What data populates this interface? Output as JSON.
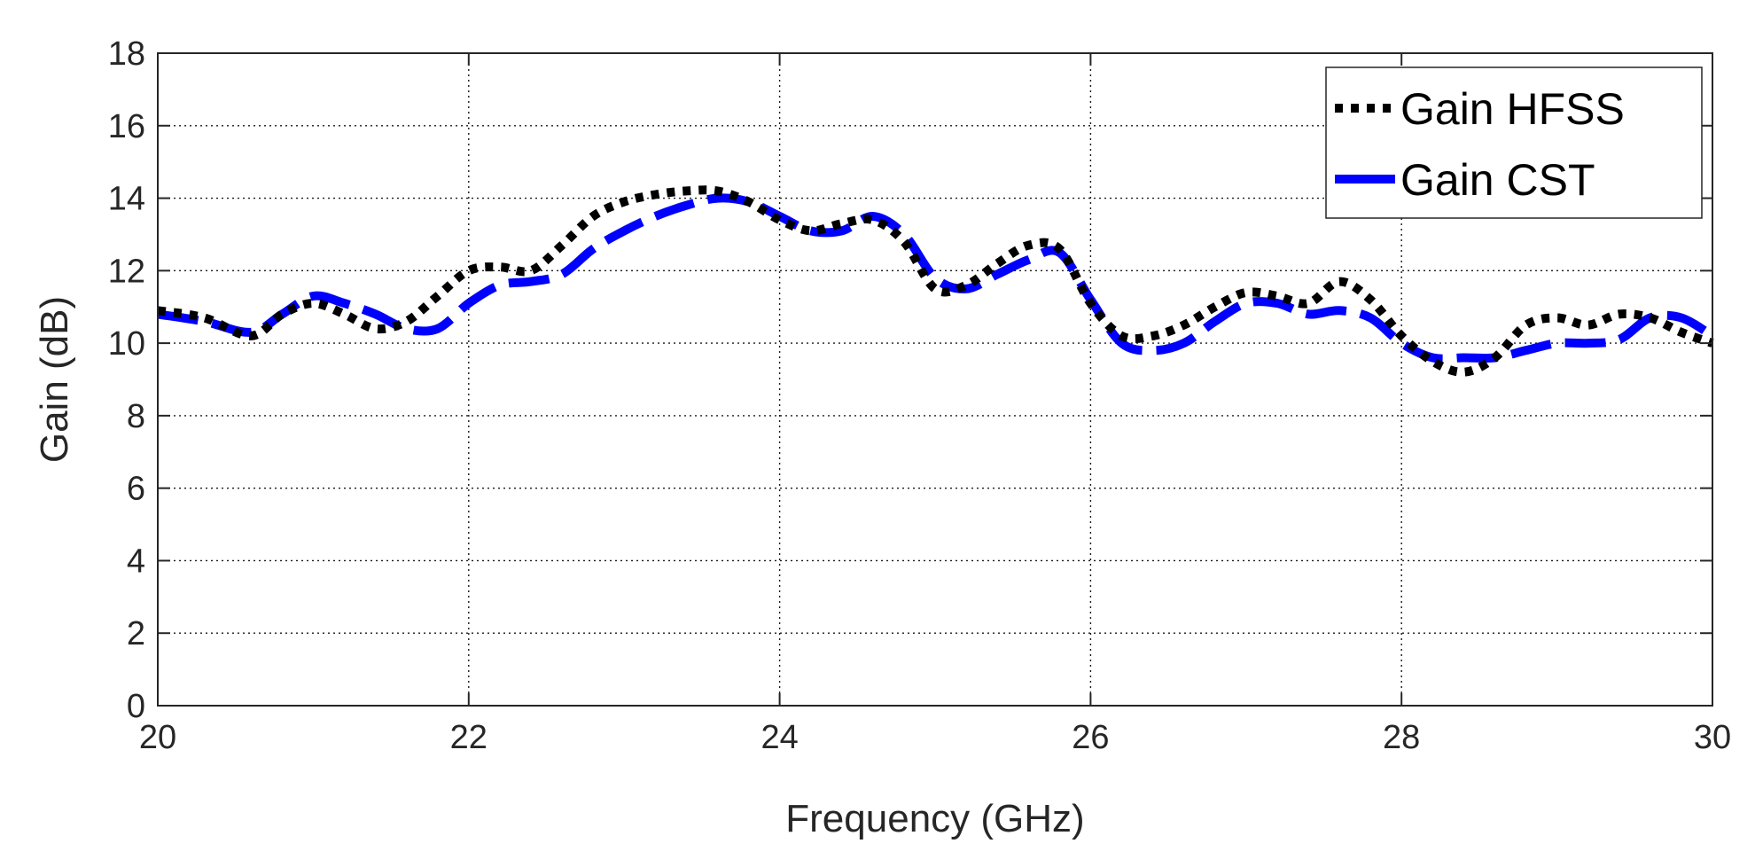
{
  "chart_data": {
    "type": "line",
    "title": "",
    "xlabel": "Frequency (GHz)",
    "ylabel": "Gain (dB)",
    "xlim": [
      20,
      30
    ],
    "ylim": [
      0,
      18
    ],
    "xticks": [
      20,
      22,
      24,
      26,
      28,
      30
    ],
    "yticks": [
      0,
      2,
      4,
      6,
      8,
      10,
      12,
      14,
      16,
      18
    ],
    "grid": true,
    "legend_position": "top-right",
    "series": [
      {
        "name": "Gain HFSS",
        "color": "#000000",
        "style": "dotted",
        "x": [
          20.0,
          20.3,
          20.6,
          20.8,
          21.0,
          21.2,
          21.4,
          21.6,
          21.8,
          22.0,
          22.2,
          22.4,
          22.6,
          22.8,
          23.0,
          23.2,
          23.4,
          23.6,
          23.8,
          24.0,
          24.2,
          24.4,
          24.6,
          24.8,
          25.0,
          25.2,
          25.4,
          25.6,
          25.8,
          26.0,
          26.2,
          26.4,
          26.6,
          26.8,
          27.0,
          27.2,
          27.4,
          27.6,
          27.8,
          28.0,
          28.2,
          28.4,
          28.6,
          28.8,
          29.0,
          29.2,
          29.4,
          29.6,
          29.8,
          30.0
        ],
        "y": [
          10.9,
          10.7,
          10.2,
          10.8,
          11.1,
          10.8,
          10.4,
          10.6,
          11.3,
          12.0,
          12.1,
          12.0,
          12.7,
          13.5,
          13.9,
          14.1,
          14.2,
          14.2,
          13.9,
          13.4,
          13.1,
          13.3,
          13.4,
          12.8,
          11.5,
          11.6,
          12.2,
          12.7,
          12.6,
          11.1,
          10.2,
          10.2,
          10.5,
          11.0,
          11.4,
          11.3,
          11.1,
          11.7,
          11.2,
          10.2,
          9.5,
          9.2,
          9.6,
          10.5,
          10.7,
          10.5,
          10.8,
          10.7,
          10.3,
          10.0
        ]
      },
      {
        "name": "Gain CST",
        "color": "#0000ff",
        "style": "dashed",
        "x": [
          20.0,
          20.3,
          20.6,
          20.8,
          21.0,
          21.2,
          21.4,
          21.6,
          21.8,
          22.0,
          22.2,
          22.4,
          22.6,
          22.8,
          23.0,
          23.2,
          23.4,
          23.6,
          23.8,
          24.0,
          24.2,
          24.4,
          24.6,
          24.8,
          25.0,
          25.2,
          25.4,
          25.6,
          25.8,
          26.0,
          26.2,
          26.4,
          26.6,
          26.8,
          27.0,
          27.2,
          27.4,
          27.6,
          27.8,
          28.0,
          28.2,
          28.4,
          28.6,
          28.8,
          29.0,
          29.2,
          29.4,
          29.6,
          29.8,
          30.0
        ],
        "y": [
          10.8,
          10.6,
          10.3,
          10.8,
          11.3,
          11.1,
          10.8,
          10.4,
          10.4,
          11.1,
          11.6,
          11.7,
          11.9,
          12.6,
          13.1,
          13.5,
          13.8,
          14.0,
          13.9,
          13.5,
          13.1,
          13.1,
          13.5,
          13.0,
          11.8,
          11.5,
          11.9,
          12.3,
          12.5,
          11.2,
          10.0,
          9.8,
          10.0,
          10.6,
          11.1,
          11.1,
          10.8,
          10.9,
          10.7,
          10.0,
          9.6,
          9.6,
          9.6,
          9.8,
          10.0,
          10.0,
          10.1,
          10.7,
          10.7,
          10.2
        ]
      }
    ]
  }
}
